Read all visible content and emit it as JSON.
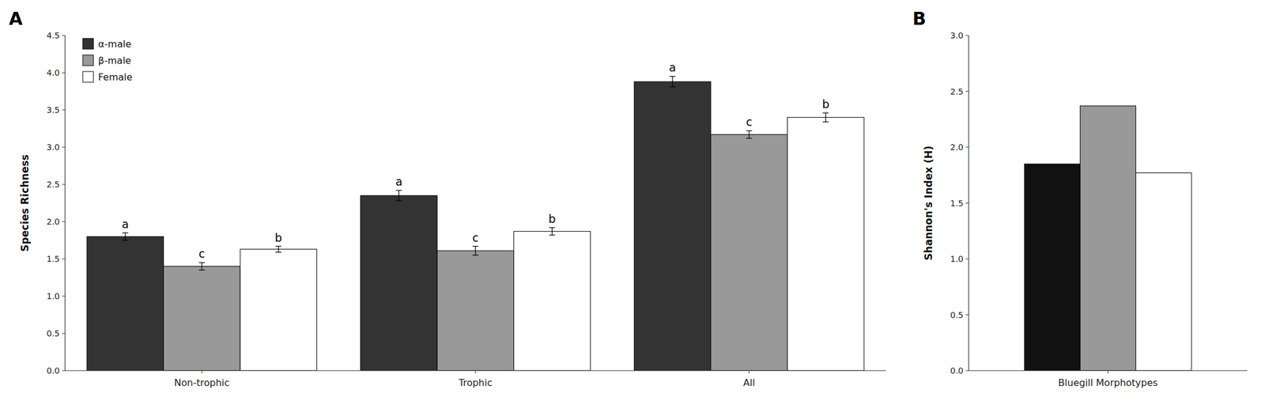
{
  "chart_data": [
    {
      "type": "bar",
      "title": "A",
      "categories": [
        "Non-trophic",
        "Trophic",
        "All"
      ],
      "y_label": "Species Richness",
      "series": [
        {
          "name": "α-male",
          "color": "#333333",
          "values": [
            1.8,
            2.35,
            3.88
          ],
          "errors": [
            0.05,
            0.07,
            0.07
          ],
          "significance": [
            "a",
            "a",
            "a"
          ]
        },
        {
          "name": "β-male",
          "color": "#999999",
          "values": [
            1.4,
            1.61,
            3.17
          ],
          "errors": [
            0.05,
            0.06,
            0.05
          ],
          "significance": [
            "c",
            "c",
            "c"
          ]
        },
        {
          "name": "Female",
          "color": "#ffffff",
          "values": [
            1.63,
            1.87,
            3.4
          ],
          "errors": [
            0.04,
            0.05,
            0.06
          ],
          "significance": [
            "b",
            "b",
            "b"
          ]
        }
      ],
      "ylim": [
        0.0,
        4.5
      ],
      "yticks": [
        {
          "value": 0.0,
          "label": "0.0"
        },
        0.5,
        {
          "value": 1.0,
          "label": "1.0"
        },
        1.5,
        {
          "value": 2.0,
          "label": "2.0"
        },
        2.5,
        {
          "value": 3.0,
          "label": "3.0"
        },
        3.5,
        {
          "value": 4.0,
          "label": "4.0"
        },
        4.5
      ],
      "legend": "upper left",
      "grid": false
    },
    {
      "type": "bar",
      "title": "B",
      "categories": [
        "Bluegill Morphotypes"
      ],
      "y_label": "Shannon's Index (H)",
      "series": [
        {
          "color": "#111111",
          "values": [
            1.85
          ]
        },
        {
          "color": "#999999",
          "values": [
            2.37
          ]
        },
        {
          "color": "#ffffff",
          "values": [
            1.77
          ]
        }
      ],
      "ylim": [
        0.0,
        3.0
      ],
      "yticks": [
        {
          "value": 0.0,
          "label": "0.0"
        },
        0.5,
        {
          "value": 1.0,
          "label": "1.0"
        },
        1.5,
        {
          "value": 2.0,
          "label": "2.0"
        },
        2.5,
        {
          "value": 3.0,
          "label": "3.0"
        }
      ],
      "grid": false
    }
  ]
}
